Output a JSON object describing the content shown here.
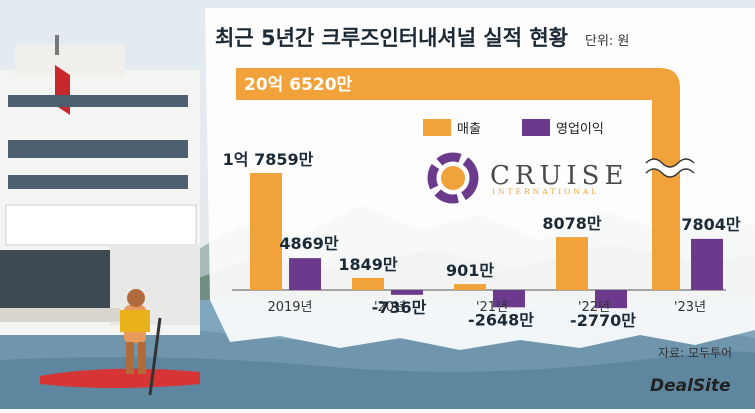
{
  "title": "최근 5년간 크루즈인터내셔널 실적 현황",
  "unit_label": "단위: 원",
  "source_label": "자료: 모두투어",
  "watermark": "DealSite",
  "logo": {
    "word": "CRUISE",
    "sub": "INTERNATIONAL"
  },
  "colors": {
    "revenue": "#F2A23A",
    "profit": "#6B3A8C",
    "sky": "#dde6ec",
    "sea": "#7fa6bd"
  },
  "chart_data": {
    "type": "bar",
    "categories": [
      "2019년",
      "'20년",
      "'21년",
      "'22년",
      "'23년"
    ],
    "series": [
      {
        "name": "매출",
        "values": [
          17859,
          1849,
          901,
          8078,
          206520
        ],
        "labels": [
          "1억 7859만",
          "1849만",
          "901만",
          "8078만",
          "20억 6520만"
        ]
      },
      {
        "name": "영업이익",
        "values": [
          4869,
          -736,
          -2648,
          -2770,
          7804
        ],
        "labels": [
          "4869만",
          "-736만",
          "-2648만",
          "-2770만",
          "7804만"
        ]
      }
    ],
    "ylabel": "",
    "axis_break": true,
    "legend": "top-center"
  }
}
